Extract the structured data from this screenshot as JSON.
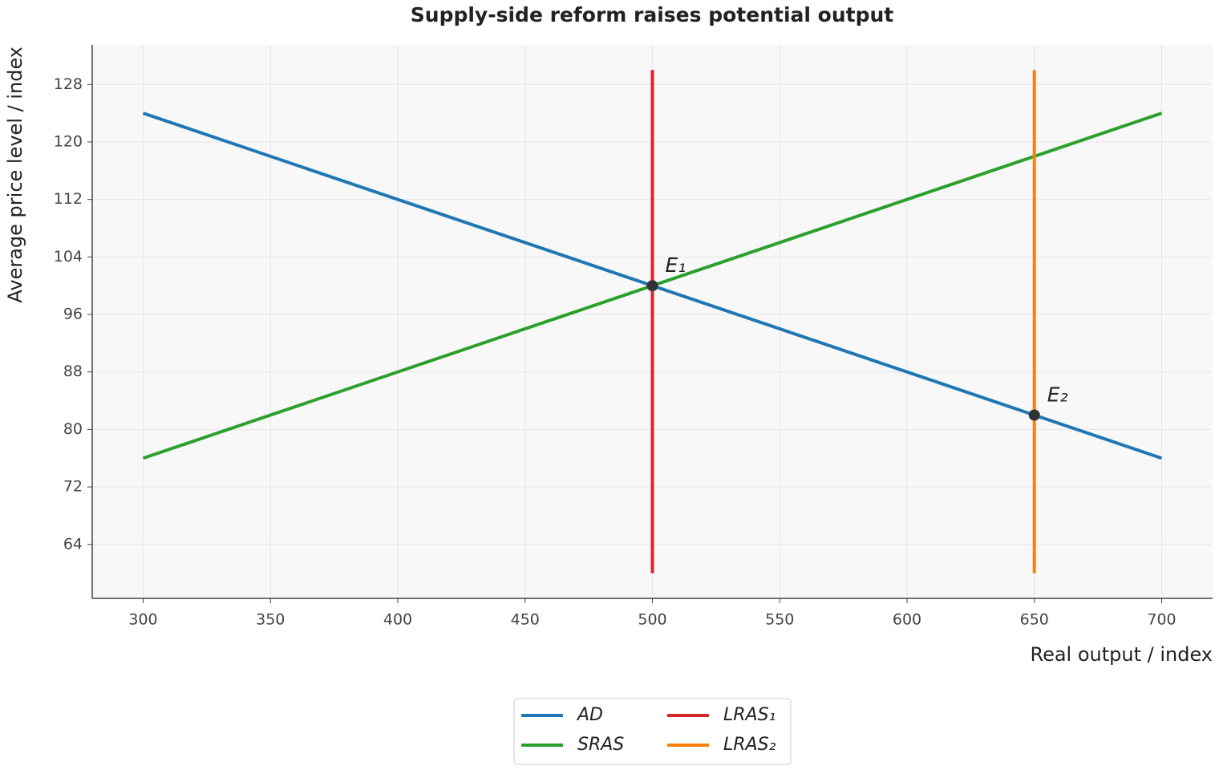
{
  "chart_data": {
    "type": "line",
    "title": "Supply-side reform raises potential output",
    "x_label": "Real output / index",
    "y_label": "Average price level / index",
    "xlim": [
      280,
      720
    ],
    "ylim": [
      56.5,
      133.5
    ],
    "xticks": [
      300,
      350,
      400,
      450,
      500,
      550,
      600,
      650,
      700
    ],
    "yticks": [
      64,
      72,
      80,
      88,
      96,
      104,
      112,
      120,
      128
    ],
    "grid": true,
    "legend_position": "bottom",
    "series": [
      {
        "name": "AD",
        "color": "#1f77b4",
        "x": [
          300,
          700
        ],
        "values": [
          124,
          76
        ]
      },
      {
        "name": "SRAS",
        "color": "#2ca02c",
        "x": [
          300,
          700
        ],
        "values": [
          76,
          124
        ]
      },
      {
        "name": "LRAS₁",
        "color": "#d62728",
        "x": [
          500,
          500
        ],
        "values": [
          60,
          130
        ]
      },
      {
        "name": "LRAS₂",
        "color": "#ff7f0e",
        "x": [
          650,
          650
        ],
        "values": [
          60,
          130
        ]
      }
    ],
    "annotations": [
      {
        "label": "E₁",
        "x": 500,
        "y": 100
      },
      {
        "label": "E₂",
        "x": 650,
        "y": 82
      }
    ]
  }
}
